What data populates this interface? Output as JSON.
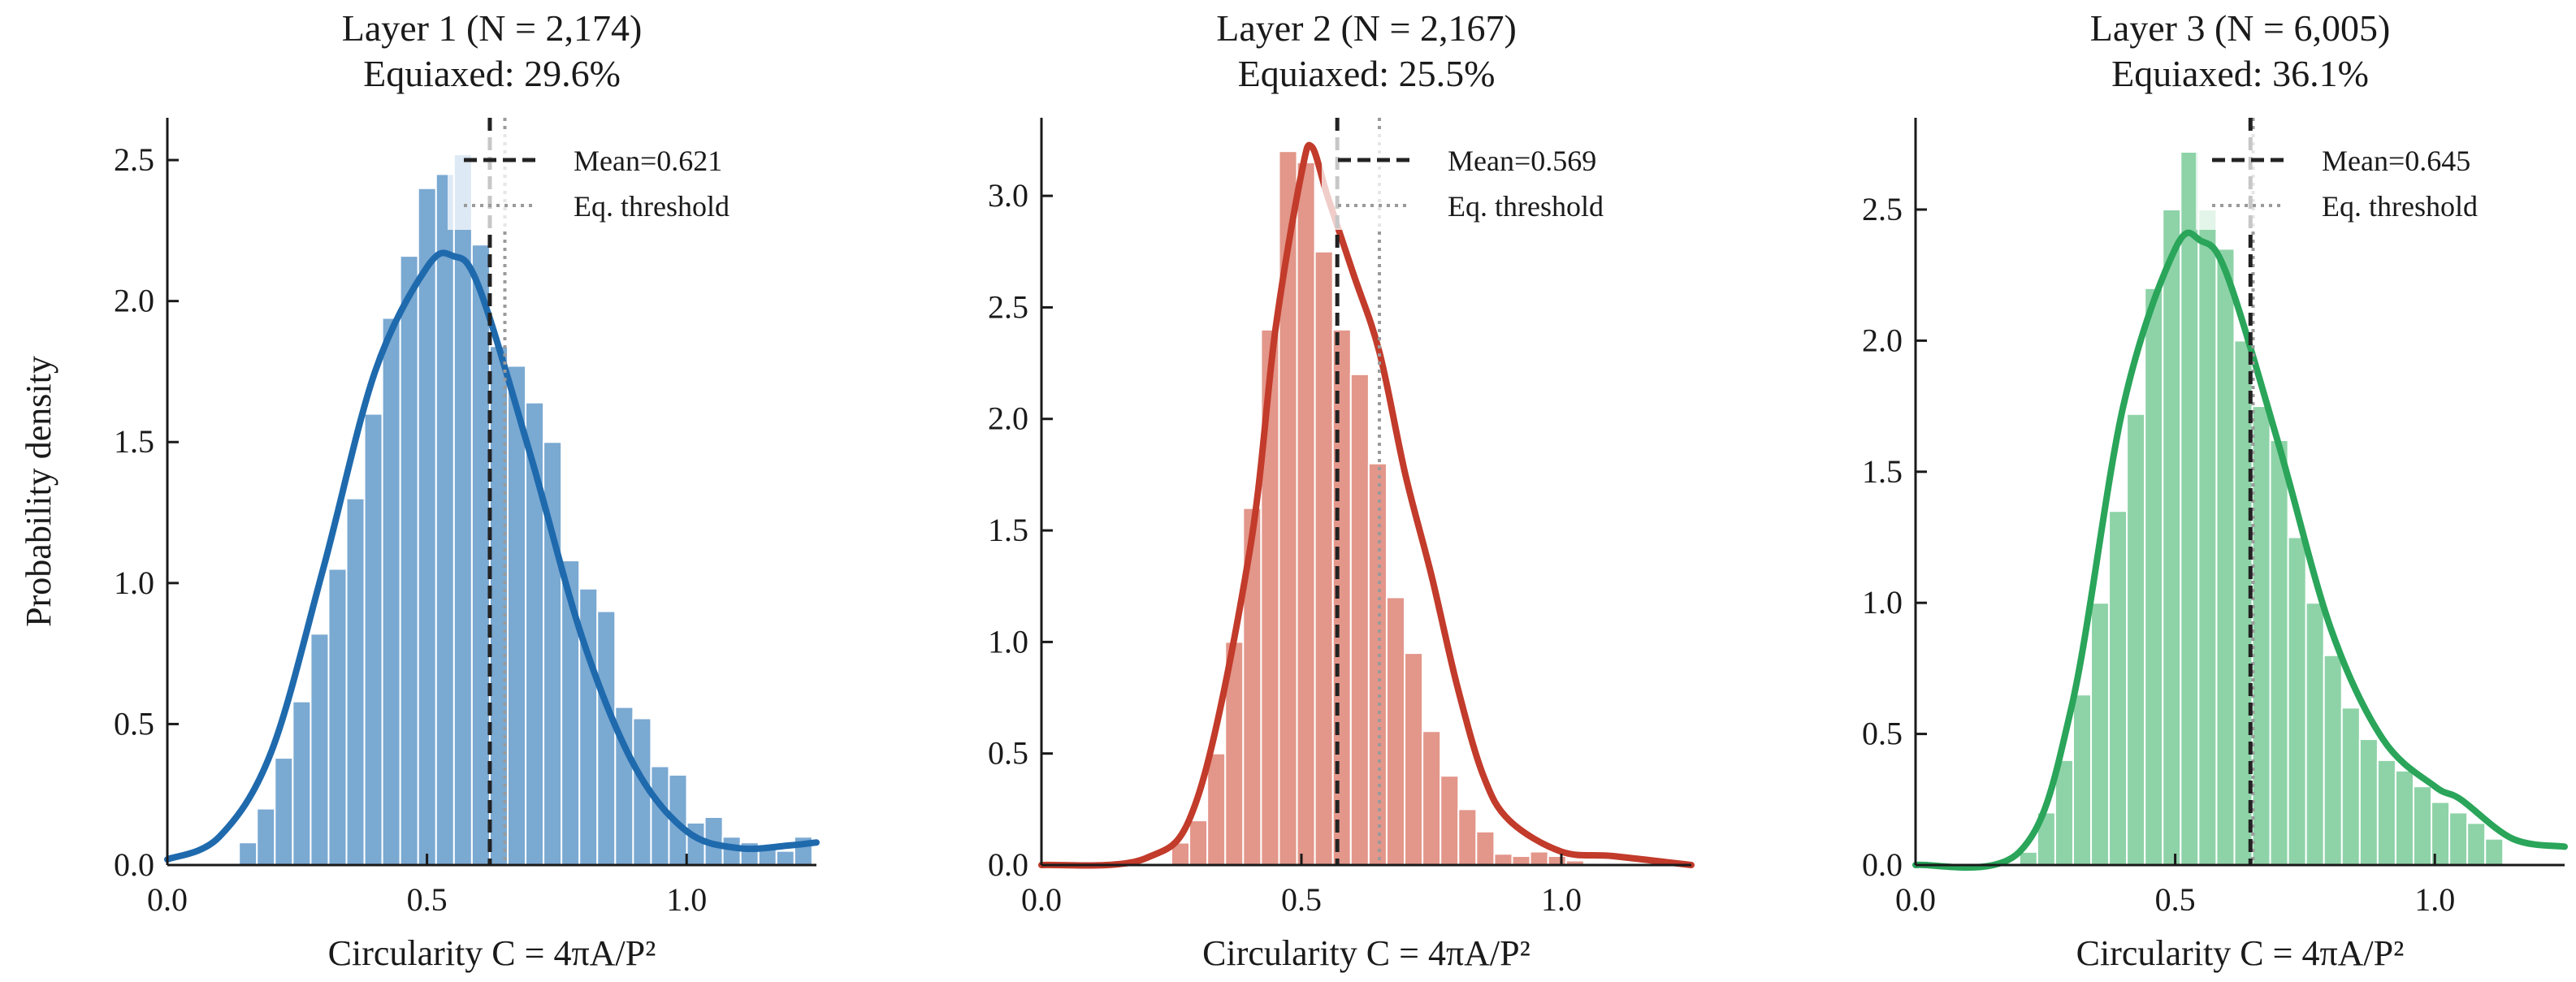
{
  "figure": {
    "ylabel": "Probability density"
  },
  "chart_data": [
    {
      "type": "histogram",
      "title": "Layer 1  (N = 2,174)",
      "subtitle": "Equiaxed: 29.6%",
      "xlabel": "Circularity  C = 4πA/P²",
      "ylabel": "Probability density",
      "xlim": [
        0.0,
        1.25
      ],
      "ylim": [
        0.0,
        2.65
      ],
      "xticks": [
        "0.0",
        "0.5",
        "1.0"
      ],
      "yticks": [
        "0.0",
        "0.5",
        "1.0",
        "1.5",
        "2.0",
        "2.5"
      ],
      "bin_start": 0.0,
      "bin_width": 0.0345,
      "values": [
        0.0,
        0.0,
        0.0,
        0.0,
        0.08,
        0.2,
        0.38,
        0.58,
        0.82,
        1.05,
        1.3,
        1.6,
        1.94,
        2.16,
        2.4,
        2.45,
        2.52,
        2.2,
        1.84,
        1.77,
        1.64,
        1.5,
        1.08,
        0.98,
        0.9,
        0.56,
        0.52,
        0.35,
        0.32,
        0.15,
        0.17,
        0.1,
        0.08,
        0.06,
        0.05,
        0.1
      ],
      "kde_x": [
        0.0,
        0.1,
        0.2,
        0.3,
        0.4,
        0.5,
        0.55,
        0.6,
        0.7,
        0.8,
        0.9,
        1.0,
        1.1,
        1.2,
        1.25
      ],
      "kde_y": [
        0.02,
        0.1,
        0.4,
        1.05,
        1.75,
        2.12,
        2.16,
        2.05,
        1.45,
        0.8,
        0.35,
        0.12,
        0.06,
        0.07,
        0.08
      ],
      "mean": 0.621,
      "threshold": 0.65,
      "legend": [
        "Mean=0.621",
        "Eq. threshold"
      ],
      "bar_color": "#7aa9d2",
      "line_color": "#1f6aad"
    },
    {
      "type": "histogram",
      "title": "Layer 2  (N = 2,167)",
      "subtitle": "Equiaxed: 25.5%",
      "xlabel": "Circularity  C = 4πA/P²",
      "ylabel": "",
      "xlim": [
        0.0,
        1.25
      ],
      "ylim": [
        0.0,
        3.35
      ],
      "xticks": [
        "0.0",
        "0.5",
        "1.0"
      ],
      "yticks": [
        "0.0",
        "0.5",
        "1.0",
        "1.5",
        "2.0",
        "2.5",
        "3.0"
      ],
      "bin_start": 0.25,
      "bin_width": 0.0345,
      "values": [
        0.1,
        0.2,
        0.5,
        1.0,
        1.6,
        2.4,
        3.2,
        3.15,
        2.75,
        2.4,
        2.2,
        1.8,
        1.2,
        0.95,
        0.6,
        0.4,
        0.25,
        0.15,
        0.05,
        0.04,
        0.06,
        0.04,
        0.02
      ],
      "kde_x": [
        0.0,
        0.2,
        0.3,
        0.4,
        0.45,
        0.5,
        0.52,
        0.55,
        0.6,
        0.65,
        0.7,
        0.75,
        0.8,
        0.85,
        0.9,
        1.0,
        1.1,
        1.25
      ],
      "kde_y": [
        0.0,
        0.03,
        0.3,
        1.4,
        2.4,
        3.1,
        3.22,
        3.0,
        2.65,
        2.3,
        1.75,
        1.3,
        0.8,
        0.4,
        0.2,
        0.06,
        0.04,
        0.0
      ],
      "mean": 0.569,
      "threshold": 0.65,
      "legend": [
        "Mean=0.569",
        "Eq. threshold"
      ],
      "bar_color": "#e3968a",
      "line_color": "#c23b2b"
    },
    {
      "type": "histogram",
      "title": "Layer 3  (N = 6,005)",
      "subtitle": "Equiaxed: 36.1%",
      "xlabel": "Circularity  C = 4πA/P²",
      "ylabel": "",
      "xlim": [
        0.0,
        1.25
      ],
      "ylim": [
        0.0,
        2.85
      ],
      "xticks": [
        "0.0",
        "0.5",
        "1.0"
      ],
      "yticks": [
        "0.0",
        "0.5",
        "1.0",
        "1.5",
        "2.0",
        "2.5"
      ],
      "bin_start": 0.2,
      "bin_width": 0.0345,
      "values": [
        0.05,
        0.2,
        0.4,
        0.65,
        1.0,
        1.35,
        1.72,
        2.2,
        2.5,
        2.72,
        2.5,
        2.35,
        2.0,
        1.75,
        1.62,
        1.25,
        1.0,
        0.8,
        0.6,
        0.48,
        0.4,
        0.36,
        0.3,
        0.24,
        0.2,
        0.16,
        0.1
      ],
      "kde_x": [
        0.0,
        0.2,
        0.3,
        0.4,
        0.5,
        0.55,
        0.6,
        0.7,
        0.8,
        0.9,
        1.0,
        1.05,
        1.15,
        1.25
      ],
      "kde_y": [
        0.0,
        0.05,
        0.6,
        1.75,
        2.35,
        2.38,
        2.25,
        1.6,
        0.9,
        0.48,
        0.3,
        0.25,
        0.1,
        0.07
      ],
      "mean": 0.645,
      "threshold": 0.65,
      "legend": [
        "Mean=0.645",
        "Eq. threshold"
      ],
      "bar_color": "#8ed3a8",
      "line_color": "#2aa55a"
    }
  ]
}
